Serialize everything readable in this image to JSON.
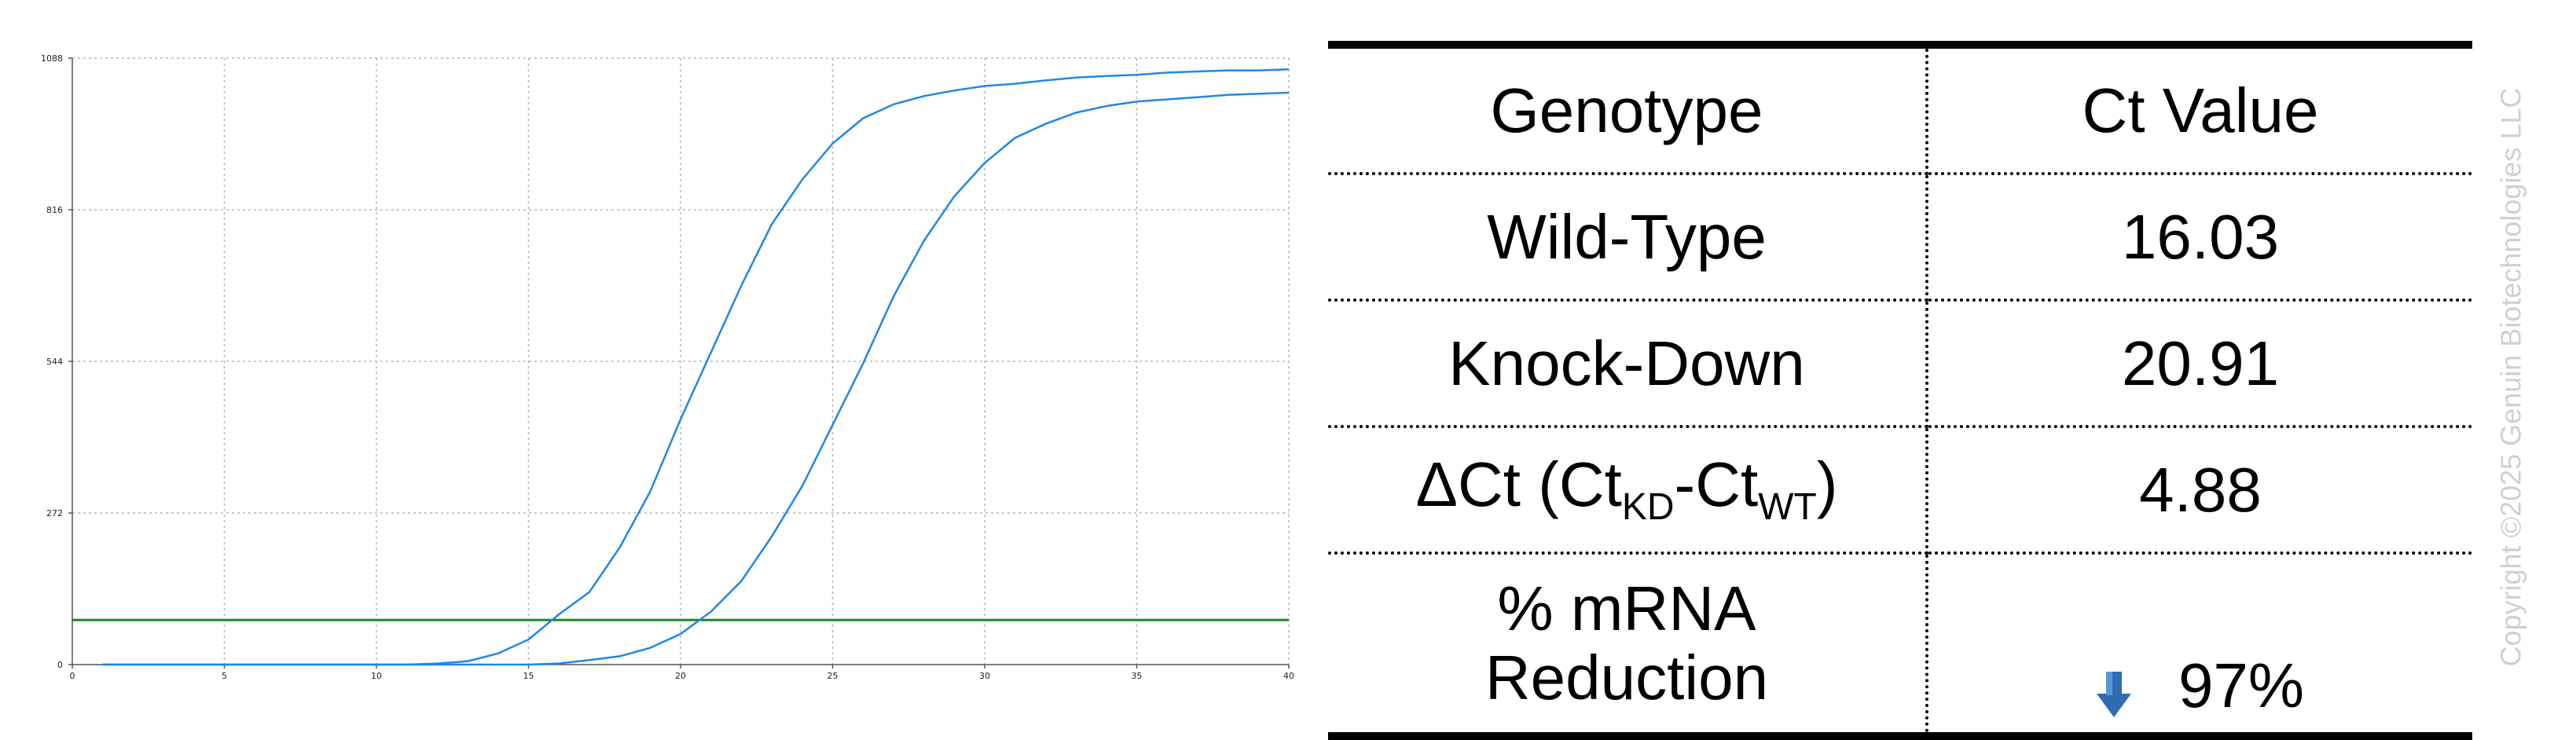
{
  "chart_data": {
    "type": "line",
    "title": "",
    "xlabel": "",
    "ylabel": "",
    "xlim": [
      0,
      40
    ],
    "ylim": [
      0,
      1088
    ],
    "x_ticks": [
      0,
      5,
      10,
      15,
      20,
      25,
      30,
      35,
      40
    ],
    "y_ticks": [
      0,
      272,
      544,
      816,
      1088
    ],
    "grid": true,
    "series": [
      {
        "color": "#1e88e5",
        "x": [
          1,
          2,
          3,
          4,
          5,
          6,
          7,
          8,
          9,
          10,
          11,
          12,
          13,
          14,
          15,
          16,
          17,
          18,
          19,
          20,
          21,
          22,
          23,
          24,
          25,
          26,
          27,
          28,
          29,
          30,
          31,
          32,
          33,
          34,
          35,
          36,
          37,
          38,
          39,
          40
        ],
        "values": [
          0,
          0,
          0,
          0,
          0,
          0,
          0,
          0,
          0,
          0,
          0,
          2,
          6,
          20,
          45,
          90,
          130,
          210,
          310,
          440,
          560,
          680,
          790,
          870,
          935,
          980,
          1005,
          1020,
          1030,
          1038,
          1042,
          1048,
          1053,
          1056,
          1058,
          1062,
          1064,
          1066,
          1066,
          1068
        ]
      },
      {
        "color": "#1e88e5",
        "x": [
          1,
          2,
          3,
          4,
          5,
          6,
          7,
          8,
          9,
          10,
          11,
          12,
          13,
          14,
          15,
          16,
          17,
          18,
          19,
          20,
          21,
          22,
          23,
          24,
          25,
          26,
          27,
          28,
          29,
          30,
          31,
          32,
          33,
          34,
          35,
          36,
          37,
          38,
          39,
          40
        ],
        "values": [
          0,
          0,
          0,
          0,
          0,
          0,
          0,
          0,
          0,
          0,
          0,
          0,
          0,
          0,
          0,
          2,
          8,
          15,
          30,
          55,
          95,
          150,
          230,
          320,
          430,
          540,
          660,
          760,
          840,
          900,
          945,
          970,
          990,
          1002,
          1010,
          1014,
          1018,
          1022,
          1024,
          1026
        ]
      }
    ],
    "threshold": {
      "y": 80,
      "color": "#1a8a1a"
    }
  },
  "table": {
    "header": {
      "genotype": "Genotype",
      "value": "Ct Value"
    },
    "rows": [
      {
        "genotype": "Wild-Type",
        "value": "16.03"
      },
      {
        "genotype": "Knock-Down",
        "value": "20.91"
      }
    ],
    "delta": {
      "prefix": "ΔCt (Ct",
      "sub1": "KD",
      "mid": "-Ct",
      "sub2": "WT",
      "suffix": ")",
      "value": "4.88"
    },
    "reduction": {
      "line1": "% mRNA",
      "line2": "Reduction",
      "value": "97%",
      "icon": "down-arrow-icon",
      "arrow_color": "#2e6db4"
    }
  },
  "watermark": "Copyright ©2025 Genuin Biotechnologies LLC"
}
